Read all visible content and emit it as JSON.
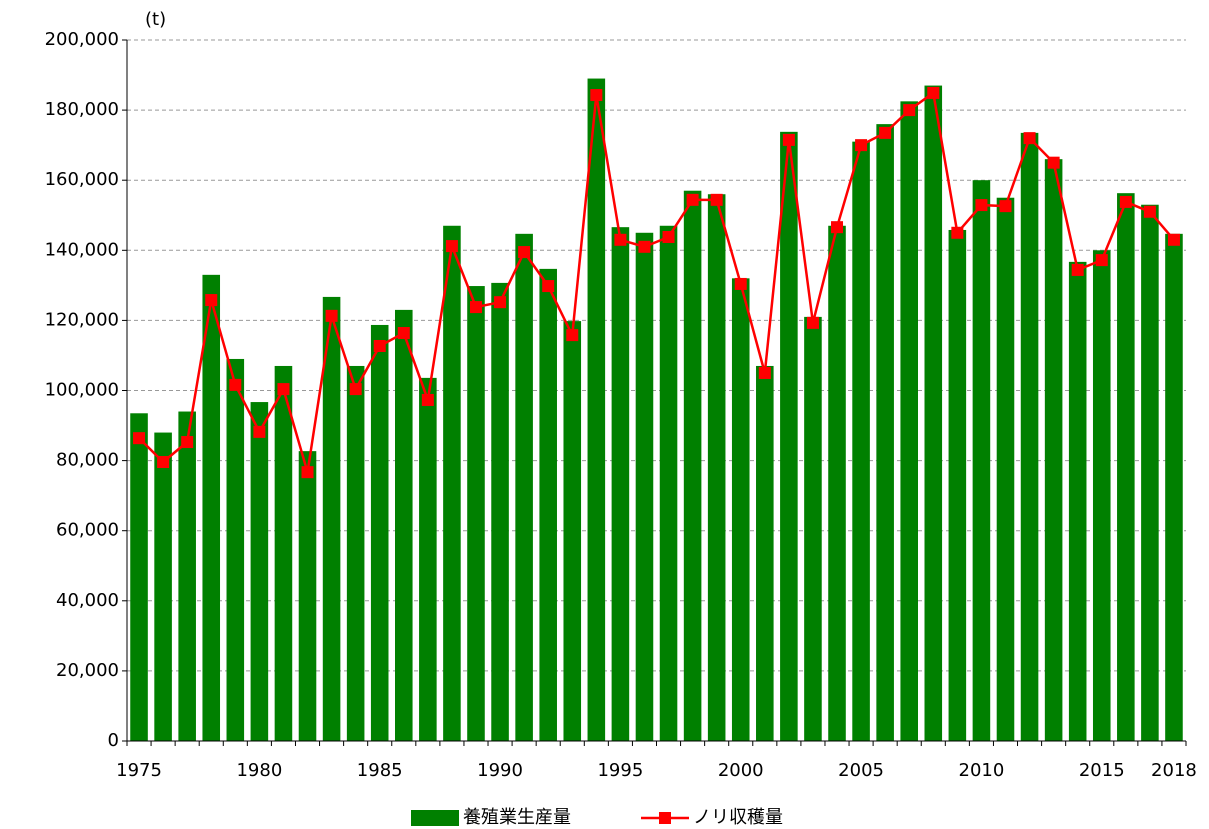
{
  "chart_data": {
    "type": "bar",
    "y_unit": "(t)",
    "categories": [
      "1975",
      null,
      null,
      null,
      null,
      "1980",
      null,
      null,
      null,
      null,
      "1985",
      null,
      null,
      null,
      null,
      "1990",
      null,
      null,
      null,
      null,
      "1995",
      null,
      null,
      null,
      null,
      "2000",
      null,
      null,
      null,
      null,
      "2005",
      null,
      null,
      null,
      null,
      "2010",
      null,
      null,
      null,
      null,
      "2015",
      null,
      null,
      "2018"
    ],
    "series": [
      {
        "name": "養殖業生産量",
        "type": "bar",
        "color": "#008000",
        "values": [
          93500,
          88000,
          94000,
          133000,
          109000,
          96700,
          107000,
          82700,
          126700,
          107000,
          118700,
          123000,
          103600,
          147000,
          129800,
          130700,
          144700,
          134700,
          119800,
          189000,
          146600,
          145000,
          147000,
          157000,
          156000,
          132000,
          107000,
          173800,
          121000,
          147000,
          171000,
          176000,
          182500,
          187000,
          145800,
          160000,
          155000,
          173500,
          166000,
          136700,
          140000,
          156300,
          153000,
          144700
        ]
      },
      {
        "name": "ノリ収穫量",
        "type": "line",
        "color": "#ff0000",
        "values": [
          86400,
          79600,
          85300,
          125800,
          101600,
          88200,
          100400,
          76700,
          121300,
          100400,
          112700,
          116400,
          97300,
          141200,
          123800,
          125200,
          139500,
          129800,
          115800,
          184300,
          143000,
          141000,
          143800,
          154400,
          154400,
          130400,
          105000,
          171500,
          119300,
          146600,
          170000,
          173500,
          180000,
          184900,
          145000,
          152900,
          152600,
          172000,
          165000,
          134400,
          137200,
          153800,
          151000,
          143000
        ]
      }
    ],
    "ylim": [
      0,
      200000
    ],
    "yticks": [
      0,
      {
        "value": 20000,
        "label": "20,000"
      },
      {
        "value": 40000,
        "label": "40,000"
      },
      {
        "value": 60000,
        "label": "60,000"
      },
      {
        "value": 80000,
        "label": "80,000"
      },
      {
        "value": 100000,
        "label": "100,000"
      },
      {
        "value": 120000,
        "label": "120,000"
      },
      {
        "value": 140000,
        "label": "140,000"
      },
      {
        "value": 160000,
        "label": "160,000"
      },
      {
        "value": 180000,
        "label": "180,000"
      },
      {
        "value": 200000,
        "label": "200,000"
      }
    ],
    "grid": true,
    "legend": "bottom"
  }
}
